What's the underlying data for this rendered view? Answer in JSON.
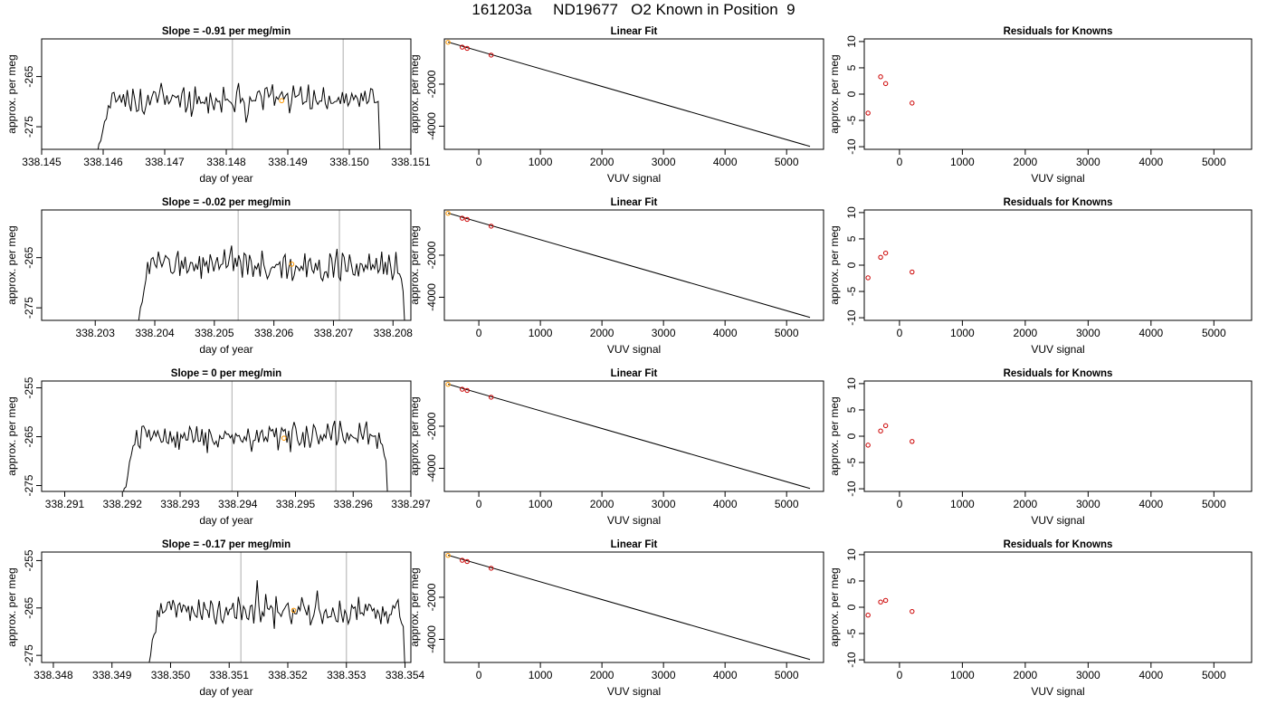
{
  "figure_title": "161203a     ND19677   O2 Known in Position  9",
  "colors": {
    "trace": "#000000",
    "marker_time": "#ff9900",
    "marker_fit_first": "#ff9900",
    "marker_fit": "#cc0000",
    "marker_resid": "#cc0000",
    "vline": "#bbbbbb"
  },
  "chart_data": [
    {
      "type": "line",
      "title": "Slope =  -0.91  per meg/min",
      "xlabel": "day of year",
      "ylabel": "approx. per meg",
      "xlim": [
        338.145,
        338.151
      ],
      "ylim": [
        -279.5,
        -257.5
      ],
      "xticks": [
        "338.145",
        "338.146",
        "338.147",
        "338.148",
        "338.149",
        "338.150",
        "338.151"
      ],
      "xtick_values": [
        338.145,
        338.146,
        338.147,
        338.148,
        338.149,
        338.15,
        338.151
      ],
      "yticks": [
        "-265",
        "-275"
      ],
      "ytick_values": [
        -265,
        -275
      ],
      "trace_x_range": [
        338.1459,
        338.1505
      ],
      "trace_level": -269.5,
      "trace_edge_low": -281,
      "trace_edge_high": -270.3,
      "vlines": [
        338.1481,
        338.1499
      ],
      "marker": [
        338.1489,
        -269.8
      ],
      "grid": false
    },
    {
      "type": "scatter",
      "title": "Linear Fit",
      "xlabel": "VUV signal",
      "ylabel": "approx. per meg",
      "xlim": [
        -560,
        5600
      ],
      "ylim": [
        -5100,
        150
      ],
      "xticks": [
        "0",
        "1000",
        "2000",
        "3000",
        "4000",
        "5000"
      ],
      "xtick_values": [
        0,
        1000,
        2000,
        3000,
        4000,
        5000
      ],
      "yticks": [
        "-2000",
        "-4000"
      ],
      "ytick_values": [
        -2000,
        -4000
      ],
      "fit_line": [
        [
          -500,
          0
        ],
        [
          5380,
          -4960
        ]
      ],
      "points": [
        [
          -500,
          -10
        ],
        [
          -270,
          -240
        ],
        [
          -190,
          -300
        ],
        [
          200,
          -620
        ]
      ],
      "grid": false
    },
    {
      "type": "scatter",
      "title": "Residuals for Knowns",
      "xlabel": "VUV signal",
      "ylabel": "approx. per meg",
      "xlim": [
        -560,
        5600
      ],
      "ylim": [
        -10.5,
        10.5
      ],
      "xticks": [
        "0",
        "1000",
        "2000",
        "3000",
        "4000",
        "5000"
      ],
      "xtick_values": [
        0,
        1000,
        2000,
        3000,
        4000,
        5000
      ],
      "yticks": [
        "-10",
        "-5",
        "0",
        "5",
        "10"
      ],
      "ytick_values": [
        -10,
        -5,
        0,
        5,
        10
      ],
      "points": [
        [
          -500,
          -3.6
        ],
        [
          -300,
          3.3
        ],
        [
          -220,
          2.0
        ],
        [
          200,
          -1.7
        ]
      ],
      "grid": false
    },
    {
      "type": "line",
      "title": "Slope =  -0.02  per meg/min",
      "xlabel": "day of year",
      "ylabel": "approx. per meg",
      "xlim": [
        338.2021,
        338.2083
      ],
      "ylim": [
        -277.5,
        -255.5
      ],
      "xticks": [
        "338.203",
        "338.204",
        "338.205",
        "338.206",
        "338.207",
        "338.208"
      ],
      "xtick_values": [
        338.203,
        338.204,
        338.205,
        338.206,
        338.207,
        338.208
      ],
      "yticks": [
        "-265",
        "-275"
      ],
      "ytick_values": [
        -265,
        -275
      ],
      "trace_x_range": [
        338.2037,
        338.2082
      ],
      "trace_level": -266.5,
      "trace_edge_low": -279,
      "trace_edge_high": -273,
      "vlines": [
        338.2054,
        338.2071
      ],
      "marker": [
        338.2063,
        -266.3
      ],
      "grid": false
    },
    {
      "type": "scatter",
      "title": "Linear Fit",
      "xlabel": "VUV signal",
      "ylabel": "approx. per meg",
      "xlim": [
        -560,
        5600
      ],
      "ylim": [
        -5100,
        150
      ],
      "xticks": [
        "0",
        "1000",
        "2000",
        "3000",
        "4000",
        "5000"
      ],
      "xtick_values": [
        0,
        1000,
        2000,
        3000,
        4000,
        5000
      ],
      "yticks": [
        "-2000",
        "-4000"
      ],
      "ytick_values": [
        -2000,
        -4000
      ],
      "fit_line": [
        [
          -500,
          0
        ],
        [
          5380,
          -4960
        ]
      ],
      "points": [
        [
          -500,
          -10
        ],
        [
          -270,
          -240
        ],
        [
          -190,
          -300
        ],
        [
          200,
          -620
        ]
      ],
      "grid": false
    },
    {
      "type": "scatter",
      "title": "Residuals for Knowns",
      "xlabel": "VUV signal",
      "ylabel": "approx. per meg",
      "xlim": [
        -560,
        5600
      ],
      "ylim": [
        -10.5,
        10.5
      ],
      "xticks": [
        "0",
        "1000",
        "2000",
        "3000",
        "4000",
        "5000"
      ],
      "xtick_values": [
        0,
        1000,
        2000,
        3000,
        4000,
        5000
      ],
      "yticks": [
        "-10",
        "-5",
        "0",
        "5",
        "10"
      ],
      "ytick_values": [
        -10,
        -5,
        0,
        5,
        10
      ],
      "points": [
        [
          -500,
          -2.4
        ],
        [
          -300,
          1.5
        ],
        [
          -220,
          2.3
        ],
        [
          200,
          -1.3
        ]
      ],
      "grid": false
    },
    {
      "type": "line",
      "title": "Slope =  0  per meg/min",
      "xlabel": "day of year",
      "ylabel": "approx. per meg",
      "xlim": [
        338.2906,
        338.297
      ],
      "ylim": [
        -276.2,
        -253.6
      ],
      "xticks": [
        "338.291",
        "338.292",
        "338.293",
        "338.294",
        "338.295",
        "338.296",
        "338.297"
      ],
      "xtick_values": [
        338.291,
        338.292,
        338.293,
        338.294,
        338.295,
        338.296,
        338.297
      ],
      "yticks": [
        "-255",
        "-265",
        "-275"
      ],
      "ytick_values": [
        -255,
        -265,
        -275
      ],
      "trace_x_range": [
        338.292,
        338.2966
      ],
      "trace_level": -265.0,
      "trace_edge_low": -278,
      "trace_edge_high": -272,
      "vlines": [
        338.2939,
        338.2957
      ],
      "marker": [
        338.2948,
        -265.3
      ],
      "grid": false
    },
    {
      "type": "scatter",
      "title": "Linear Fit",
      "xlabel": "VUV signal",
      "ylabel": "approx. per meg",
      "xlim": [
        -560,
        5600
      ],
      "ylim": [
        -5100,
        150
      ],
      "xticks": [
        "0",
        "1000",
        "2000",
        "3000",
        "4000",
        "5000"
      ],
      "xtick_values": [
        0,
        1000,
        2000,
        3000,
        4000,
        5000
      ],
      "yticks": [
        "-2000",
        "-4000"
      ],
      "ytick_values": [
        -2000,
        -4000
      ],
      "fit_line": [
        [
          -500,
          0
        ],
        [
          5380,
          -4960
        ]
      ],
      "points": [
        [
          -500,
          -10
        ],
        [
          -270,
          -240
        ],
        [
          -190,
          -300
        ],
        [
          200,
          -620
        ]
      ],
      "grid": false
    },
    {
      "type": "scatter",
      "title": "Residuals for Knowns",
      "xlabel": "VUV signal",
      "ylabel": "approx. per meg",
      "xlim": [
        -560,
        5600
      ],
      "ylim": [
        -10.5,
        10.5
      ],
      "xticks": [
        "0",
        "1000",
        "2000",
        "3000",
        "4000",
        "5000"
      ],
      "xtick_values": [
        0,
        1000,
        2000,
        3000,
        4000,
        5000
      ],
      "yticks": [
        "-10",
        "-5",
        "0",
        "5",
        "10"
      ],
      "ytick_values": [
        -10,
        -5,
        0,
        5,
        10
      ],
      "points": [
        [
          -500,
          -1.7
        ],
        [
          -300,
          1.0
        ],
        [
          -220,
          2.0
        ],
        [
          200,
          -1.0
        ]
      ],
      "grid": false
    },
    {
      "type": "line",
      "title": "Slope =  -0.17  per meg/min",
      "xlabel": "day of year",
      "ylabel": "approx. per meg",
      "xlim": [
        338.3478,
        338.3541
      ],
      "ylim": [
        -276.5,
        -253.2
      ],
      "xticks": [
        "338.348",
        "338.349",
        "338.350",
        "338.351",
        "338.352",
        "338.353",
        "338.354"
      ],
      "xtick_values": [
        338.348,
        338.349,
        338.35,
        338.351,
        338.352,
        338.353,
        338.354
      ],
      "yticks": [
        "-255",
        "-265",
        "-275"
      ],
      "ytick_values": [
        -255,
        -265,
        -275
      ],
      "trace_x_range": [
        338.3496,
        338.354
      ],
      "trace_level": -265.5,
      "trace_edge_low": -278,
      "trace_edge_high": -270,
      "vlines": [
        338.3512,
        338.353
      ],
      "marker": [
        338.3521,
        -265.5
      ],
      "grid": false
    },
    {
      "type": "scatter",
      "title": "Linear Fit",
      "xlabel": "VUV signal",
      "ylabel": "approx. per meg",
      "xlim": [
        -560,
        5600
      ],
      "ylim": [
        -5100,
        150
      ],
      "xticks": [
        "0",
        "1000",
        "2000",
        "3000",
        "4000",
        "5000"
      ],
      "xtick_values": [
        0,
        1000,
        2000,
        3000,
        4000,
        5000
      ],
      "yticks": [
        "-2000",
        "-4000"
      ],
      "ytick_values": [
        -2000,
        -4000
      ],
      "fit_line": [
        [
          -500,
          0
        ],
        [
          5380,
          -4960
        ]
      ],
      "points": [
        [
          -500,
          -10
        ],
        [
          -270,
          -240
        ],
        [
          -190,
          -300
        ],
        [
          200,
          -620
        ]
      ],
      "grid": false
    },
    {
      "type": "scatter",
      "title": "Residuals for Knowns",
      "xlabel": "VUV signal",
      "ylabel": "approx. per meg",
      "xlim": [
        -560,
        5600
      ],
      "ylim": [
        -10.5,
        10.5
      ],
      "xticks": [
        "0",
        "1000",
        "2000",
        "3000",
        "4000",
        "5000"
      ],
      "xtick_values": [
        0,
        1000,
        2000,
        3000,
        4000,
        5000
      ],
      "yticks": [
        "-10",
        "-5",
        "0",
        "5",
        "10"
      ],
      "ytick_values": [
        -10,
        -5,
        0,
        5,
        10
      ],
      "points": [
        [
          -500,
          -1.5
        ],
        [
          -300,
          1.0
        ],
        [
          -220,
          1.3
        ],
        [
          200,
          -0.8
        ]
      ],
      "grid": false
    }
  ]
}
